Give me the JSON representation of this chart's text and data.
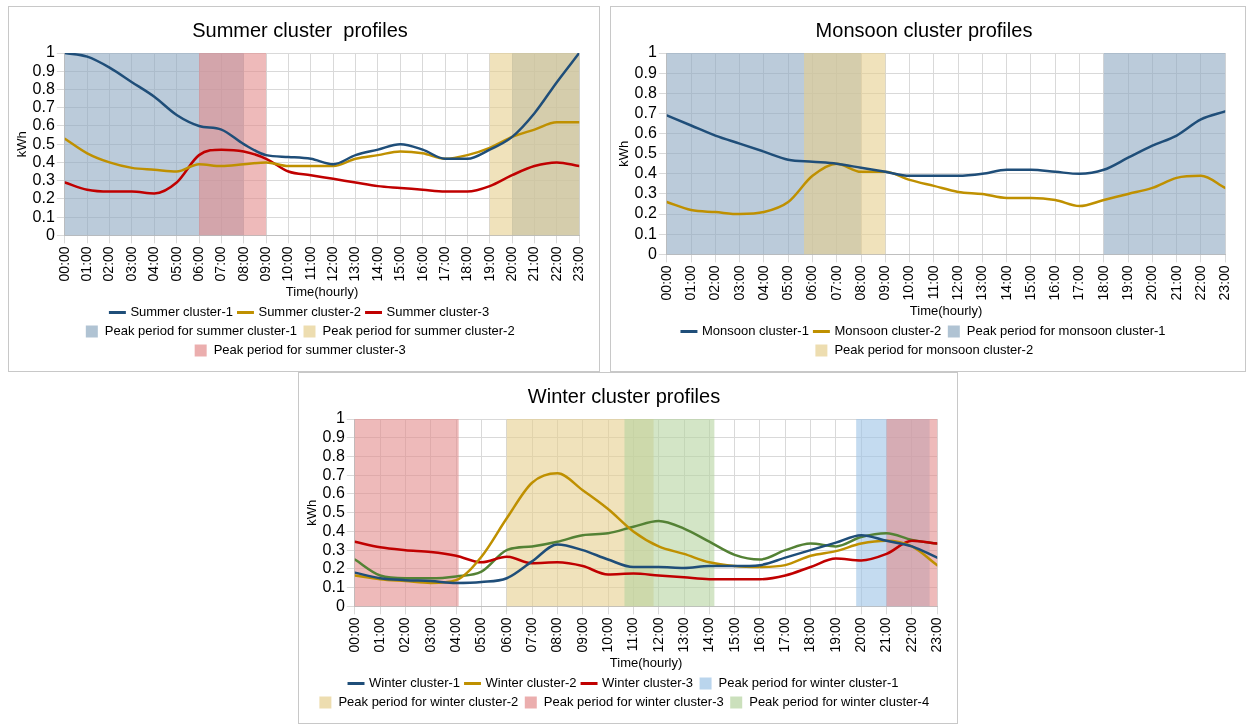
{
  "chart_data": [
    {
      "type": "line",
      "title": "Summer cluster  profiles",
      "xlabel": "Time(hourly)",
      "ylabel": "kWh",
      "x": [
        0,
        1,
        2,
        3,
        4,
        5,
        6,
        7,
        8,
        9,
        10,
        11,
        12,
        13,
        14,
        15,
        16,
        17,
        18,
        19,
        20,
        21,
        22,
        23
      ],
      "series": [
        {
          "name": "Summer cluster-1",
          "color": "#1f4e79",
          "values": [
            1.0,
            0.98,
            0.92,
            0.84,
            0.76,
            0.66,
            0.6,
            0.58,
            0.5,
            0.44,
            0.43,
            0.42,
            0.39,
            0.44,
            0.47,
            0.5,
            0.47,
            0.42,
            0.42,
            0.47,
            0.54,
            0.67,
            0.84,
            1.0
          ]
        },
        {
          "name": "Summer cluster-2",
          "color": "#bf9000",
          "values": [
            0.53,
            0.45,
            0.4,
            0.37,
            0.36,
            0.35,
            0.39,
            0.38,
            0.39,
            0.4,
            0.38,
            0.38,
            0.38,
            0.42,
            0.44,
            0.46,
            0.45,
            0.42,
            0.44,
            0.48,
            0.54,
            0.58,
            0.62,
            0.62
          ]
        },
        {
          "name": "Summer cluster-3",
          "color": "#c00000",
          "values": [
            0.29,
            0.25,
            0.24,
            0.24,
            0.23,
            0.29,
            0.44,
            0.47,
            0.46,
            0.42,
            0.35,
            0.33,
            0.31,
            0.29,
            0.27,
            0.26,
            0.25,
            0.24,
            0.24,
            0.27,
            0.33,
            0.38,
            0.4,
            0.38
          ]
        }
      ],
      "bands": [
        {
          "axis": "x",
          "from": 0,
          "to": 8,
          "label": "Peak period for summer cluster-1",
          "color": "#8ea9c1"
        },
        {
          "axis": "x",
          "from": 20,
          "to": 23,
          "color": "#8ea9c1"
        },
        {
          "axis": "x",
          "from": 19,
          "to": 23,
          "label": "Peak period for summer cluster-2",
          "color": "#e6cf8e"
        },
        {
          "axis": "x",
          "from": 6,
          "to": 9,
          "label": "Peak period for summer cluster-3",
          "color": "#e38c8c"
        }
      ],
      "xlim": [
        0,
        23
      ],
      "xticks": [
        {
          "value": 0,
          "label": "00:00"
        },
        {
          "value": 1,
          "label": "01:00"
        },
        {
          "value": 2,
          "label": "02:00"
        },
        {
          "value": 3,
          "label": "03:00"
        },
        {
          "value": 4,
          "label": "04:00"
        },
        {
          "value": 5,
          "label": "05:00"
        },
        {
          "value": 6,
          "label": "06:00"
        },
        {
          "value": 7,
          "label": "07:00"
        },
        {
          "value": 8,
          "label": "08:00"
        },
        {
          "value": 9,
          "label": "09:00"
        },
        {
          "value": 10,
          "label": "10:00"
        },
        {
          "value": 11,
          "label": "11:00"
        },
        {
          "value": 12,
          "label": "12:00"
        },
        {
          "value": 13,
          "label": "13:00"
        },
        {
          "value": 14,
          "label": "14:00"
        },
        {
          "value": 15,
          "label": "15:00"
        },
        {
          "value": 16,
          "label": "16:00"
        },
        {
          "value": 17,
          "label": "17:00"
        },
        {
          "value": 18,
          "label": "18:00"
        },
        {
          "value": 19,
          "label": "19:00"
        },
        {
          "value": 20,
          "label": "20:00"
        },
        {
          "value": 21,
          "label": "21:00"
        },
        {
          "value": 22,
          "label": "22:00"
        },
        {
          "value": 23,
          "label": "23:00"
        }
      ],
      "ylim": [
        0,
        1
      ],
      "yticks": [
        0,
        0.1,
        0.2,
        0.3,
        0.4,
        0.5,
        0.6,
        0.7,
        0.8,
        0.9,
        1
      ],
      "grid": true,
      "legend": "bottom",
      "marker": "none",
      "line_style": "solid"
    },
    {
      "type": "line",
      "title": "Monsoon cluster profiles",
      "xlabel": "Time(hourly)",
      "ylabel": "kWh",
      "x": [
        0,
        1,
        2,
        3,
        4,
        5,
        6,
        7,
        8,
        9,
        10,
        11,
        12,
        13,
        14,
        15,
        16,
        17,
        18,
        19,
        20,
        21,
        22,
        23
      ],
      "series": [
        {
          "name": "Monsoon cluster-1",
          "color": "#1f4e79",
          "values": [
            0.69,
            0.64,
            0.59,
            0.55,
            0.51,
            0.47,
            0.46,
            0.45,
            0.43,
            0.41,
            0.39,
            0.39,
            0.39,
            0.4,
            0.42,
            0.42,
            0.41,
            0.4,
            0.42,
            0.48,
            0.54,
            0.59,
            0.67,
            0.71
          ]
        },
        {
          "name": "Monsoon cluster-2",
          "color": "#bf9000",
          "values": [
            0.26,
            0.22,
            0.21,
            0.2,
            0.21,
            0.26,
            0.39,
            0.45,
            0.41,
            0.41,
            0.37,
            0.34,
            0.31,
            0.3,
            0.28,
            0.28,
            0.27,
            0.24,
            0.27,
            0.3,
            0.33,
            0.38,
            0.39,
            0.33
          ]
        }
      ],
      "bands": [
        {
          "axis": "x",
          "from": 0,
          "to": 8,
          "label": "Peak period for monsoon cluster-1",
          "color": "#8ea9c1"
        },
        {
          "axis": "x",
          "from": 18,
          "to": 23,
          "color": "#8ea9c1"
        },
        {
          "axis": "x",
          "from": 5.65,
          "to": 9,
          "label": "Peak period for monsoon cluster-2",
          "color": "#e6cf8e"
        }
      ],
      "xlim": [
        0,
        23
      ],
      "xticks": [
        {
          "value": 0,
          "label": "00:00"
        },
        {
          "value": 1,
          "label": "01:00"
        },
        {
          "value": 2,
          "label": "02:00"
        },
        {
          "value": 3,
          "label": "03:00"
        },
        {
          "value": 4,
          "label": "04:00"
        },
        {
          "value": 5,
          "label": "05:00"
        },
        {
          "value": 6,
          "label": "06:00"
        },
        {
          "value": 7,
          "label": "07:00"
        },
        {
          "value": 8,
          "label": "08:00"
        },
        {
          "value": 9,
          "label": "09:00"
        },
        {
          "value": 10,
          "label": "10:00"
        },
        {
          "value": 11,
          "label": "11:00"
        },
        {
          "value": 12,
          "label": "12:00"
        },
        {
          "value": 13,
          "label": "13:00"
        },
        {
          "value": 14,
          "label": "14:00"
        },
        {
          "value": 15,
          "label": "15:00"
        },
        {
          "value": 16,
          "label": "16:00"
        },
        {
          "value": 17,
          "label": "17:00"
        },
        {
          "value": 18,
          "label": "18:00"
        },
        {
          "value": 19,
          "label": "19:00"
        },
        {
          "value": 20,
          "label": "20:00"
        },
        {
          "value": 21,
          "label": "21:00"
        },
        {
          "value": 22,
          "label": "22:00"
        },
        {
          "value": 23,
          "label": "23:00"
        }
      ],
      "ylim": [
        0,
        1
      ],
      "yticks": [
        0,
        0.1,
        0.2,
        0.3,
        0.4,
        0.5,
        0.6,
        0.7,
        0.8,
        0.9,
        1
      ],
      "grid": true,
      "legend": "bottom",
      "marker": "none",
      "line_style": "solid"
    },
    {
      "type": "line",
      "title": "Winter cluster profiles",
      "xlabel": "Time(hourly)",
      "ylabel": "kWh",
      "x": [
        0,
        1,
        2,
        3,
        4,
        5,
        6,
        7,
        8,
        9,
        10,
        11,
        12,
        13,
        14,
        15,
        16,
        17,
        18,
        19,
        20,
        21,
        22,
        23
      ],
      "series": [
        {
          "name": "Winter cluster-1",
          "color": "#1f4e79",
          "values": [
            0.18,
            0.15,
            0.14,
            0.135,
            0.125,
            0.13,
            0.15,
            0.24,
            0.33,
            0.3,
            0.25,
            0.21,
            0.21,
            0.205,
            0.215,
            0.215,
            0.22,
            0.26,
            0.3,
            0.34,
            0.38,
            0.35,
            0.32,
            0.26
          ]
        },
        {
          "name": "Winter cluster-2",
          "color": "#bf9000",
          "values": [
            0.165,
            0.145,
            0.135,
            0.125,
            0.14,
            0.265,
            0.47,
            0.66,
            0.71,
            0.62,
            0.52,
            0.4,
            0.32,
            0.28,
            0.235,
            0.215,
            0.21,
            0.22,
            0.27,
            0.295,
            0.335,
            0.35,
            0.32,
            0.22
          ]
        },
        {
          "name": "Winter cluster-3",
          "color": "#c00000",
          "values": [
            0.345,
            0.315,
            0.3,
            0.29,
            0.27,
            0.235,
            0.265,
            0.23,
            0.235,
            0.215,
            0.17,
            0.175,
            0.165,
            0.155,
            0.145,
            0.145,
            0.145,
            0.165,
            0.21,
            0.255,
            0.245,
            0.28,
            0.35,
            0.335
          ]
        },
        {
          "color": "#548235",
          "values": [
            0.25,
            0.165,
            0.15,
            0.15,
            0.16,
            0.185,
            0.3,
            0.32,
            0.345,
            0.38,
            0.39,
            0.425,
            0.455,
            0.415,
            0.345,
            0.275,
            0.25,
            0.3,
            0.335,
            0.32,
            0.37,
            0.39,
            0.355,
            0.335
          ]
        }
      ],
      "bands": [
        {
          "axis": "x",
          "from": 19.8,
          "to": 22.7,
          "label": "Peak period for winter cluster-1",
          "color": "#9dc3e6"
        },
        {
          "axis": "x",
          "from": 6,
          "to": 11.8,
          "label": "Peak period for winter cluster-2",
          "color": "#e6cf8e"
        },
        {
          "axis": "x",
          "from": 0,
          "to": 4.1,
          "label": "Peak period for winter cluster-3",
          "color": "#e38c8c"
        },
        {
          "axis": "x",
          "from": 21,
          "to": 23,
          "color": "#e38c8c"
        },
        {
          "axis": "x",
          "from": 10.65,
          "to": 14.2,
          "label": "Peak period for winter cluster-4",
          "color": "#b5d3a0"
        }
      ],
      "xlim": [
        0,
        23
      ],
      "xticks": [
        {
          "value": 0,
          "label": "00:00"
        },
        {
          "value": 1,
          "label": "01:00"
        },
        {
          "value": 2,
          "label": "02:00"
        },
        {
          "value": 3,
          "label": "03:00"
        },
        {
          "value": 4,
          "label": "04:00"
        },
        {
          "value": 5,
          "label": "05:00"
        },
        {
          "value": 6,
          "label": "06:00"
        },
        {
          "value": 7,
          "label": "07:00"
        },
        {
          "value": 8,
          "label": "08:00"
        },
        {
          "value": 9,
          "label": "09:00"
        },
        {
          "value": 10,
          "label": "10:00"
        },
        {
          "value": 11,
          "label": "11:00"
        },
        {
          "value": 12,
          "label": "12:00"
        },
        {
          "value": 13,
          "label": "13:00"
        },
        {
          "value": 14,
          "label": "14:00"
        },
        {
          "value": 15,
          "label": "15:00"
        },
        {
          "value": 16,
          "label": "16:00"
        },
        {
          "value": 17,
          "label": "17:00"
        },
        {
          "value": 18,
          "label": "18:00"
        },
        {
          "value": 19,
          "label": "19:00"
        },
        {
          "value": 20,
          "label": "20:00"
        },
        {
          "value": 21,
          "label": "21:00"
        },
        {
          "value": 22,
          "label": "22:00"
        },
        {
          "value": 23,
          "label": "23:00"
        }
      ],
      "ylim": [
        0,
        1
      ],
      "yticks": [
        0,
        0.1,
        0.2,
        0.3,
        0.4,
        0.5,
        0.6,
        0.7,
        0.8,
        0.9,
        1
      ],
      "grid": true,
      "legend": "bottom",
      "marker": "none",
      "line_style": "solid"
    }
  ]
}
